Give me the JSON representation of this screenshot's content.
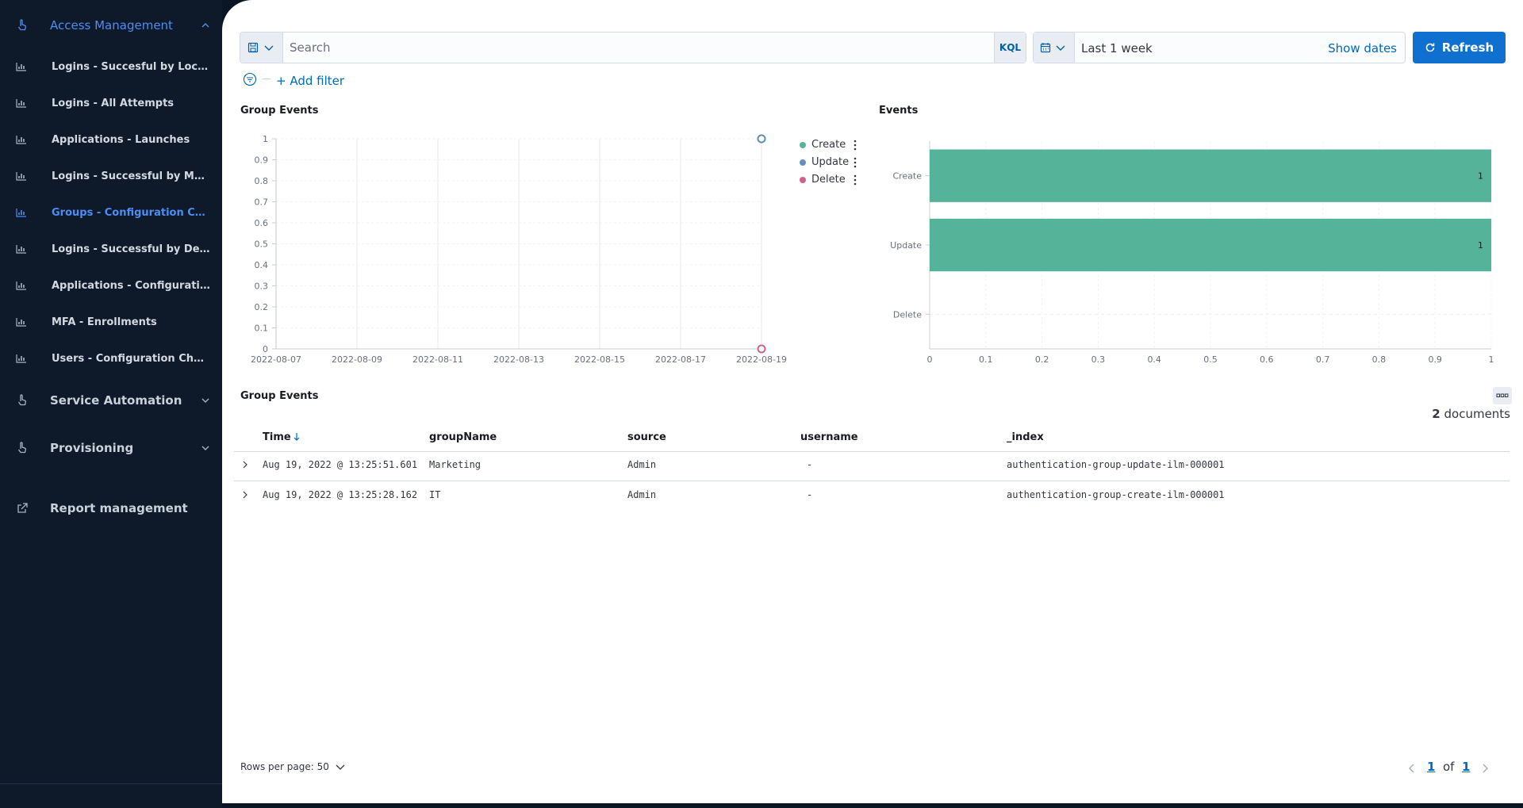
{
  "sidebar": {
    "access_management": "Access Management",
    "items": [
      {
        "label": "Logins - Succesful by Location",
        "active": false
      },
      {
        "label": "Logins - All Attempts",
        "active": false
      },
      {
        "label": "Applications - Launches",
        "active": false
      },
      {
        "label": "Logins - Successful by MFA m...",
        "active": false
      },
      {
        "label": "Groups - Configuration Changes",
        "active": true
      },
      {
        "label": "Logins - Successful by Device",
        "active": false
      },
      {
        "label": "Applications - Configuration C...",
        "active": false
      },
      {
        "label": "MFA - Enrollments",
        "active": false
      },
      {
        "label": "Users - Configuration Changes",
        "active": false
      }
    ],
    "service_automation": "Service Automation",
    "provisioning": "Provisioning",
    "report_management": "Report management"
  },
  "query": {
    "search_placeholder": "Search",
    "kql": "KQL",
    "date_range": "Last 1 week",
    "show_dates": "Show dates",
    "refresh": "Refresh",
    "add_filter": "+ Add filter"
  },
  "line_panel": {
    "title": "Group Events",
    "legend": [
      {
        "name": "Create",
        "color": "#54b399"
      },
      {
        "name": "Update",
        "color": "#6092c0"
      },
      {
        "name": "Delete",
        "color": "#d36086"
      }
    ]
  },
  "bar_panel": {
    "title": "Events"
  },
  "chart_data": [
    {
      "type": "line",
      "title": "Group Events",
      "x_ticks": [
        "2022-08-07",
        "2022-08-09",
        "2022-08-11",
        "2022-08-13",
        "2022-08-15",
        "2022-08-17",
        "2022-08-19"
      ],
      "y_ticks": [
        "0",
        "0.1",
        "0.2",
        "0.3",
        "0.4",
        "0.5",
        "0.6",
        "0.7",
        "0.8",
        "0.9",
        "1"
      ],
      "ylim": [
        0,
        1
      ],
      "grid": true,
      "legend_position": "right",
      "series": [
        {
          "name": "Create",
          "color": "#54b399",
          "points": [
            {
              "x": "2022-08-19",
              "y": 1
            }
          ]
        },
        {
          "name": "Update",
          "color": "#6092c0",
          "points": [
            {
              "x": "2022-08-19",
              "y": 1
            }
          ]
        },
        {
          "name": "Delete",
          "color": "#d36086",
          "points": [
            {
              "x": "2022-08-19",
              "y": 0
            }
          ]
        }
      ]
    },
    {
      "type": "bar",
      "orientation": "horizontal",
      "title": "Events",
      "categories": [
        "Create",
        "Update",
        "Delete"
      ],
      "values": [
        1,
        1,
        0
      ],
      "value_labels": [
        "1",
        "1",
        ""
      ],
      "x_ticks": [
        "0",
        "0.1",
        "0.2",
        "0.3",
        "0.4",
        "0.5",
        "0.6",
        "0.7",
        "0.8",
        "0.9",
        "1"
      ],
      "xlim": [
        0,
        1
      ],
      "bar_color": "#54b399",
      "grid": true
    }
  ],
  "table": {
    "title": "Group Events",
    "count": "2",
    "count_suffix": " documents",
    "columns": [
      "Time",
      "groupName",
      "source",
      "username",
      "_index"
    ],
    "rows": [
      [
        "Aug 19, 2022 @ 13:25:51.601",
        "Marketing",
        "Admin",
        "-",
        "authentication-group-update-ilm-000001"
      ],
      [
        "Aug 19, 2022 @ 13:25:28.162",
        "IT",
        "Admin",
        "-",
        "authentication-group-create-ilm-000001"
      ]
    ],
    "rows_per_page": "Rows per page: 50",
    "page_current": "1",
    "page_of": "of",
    "page_total": "1"
  }
}
